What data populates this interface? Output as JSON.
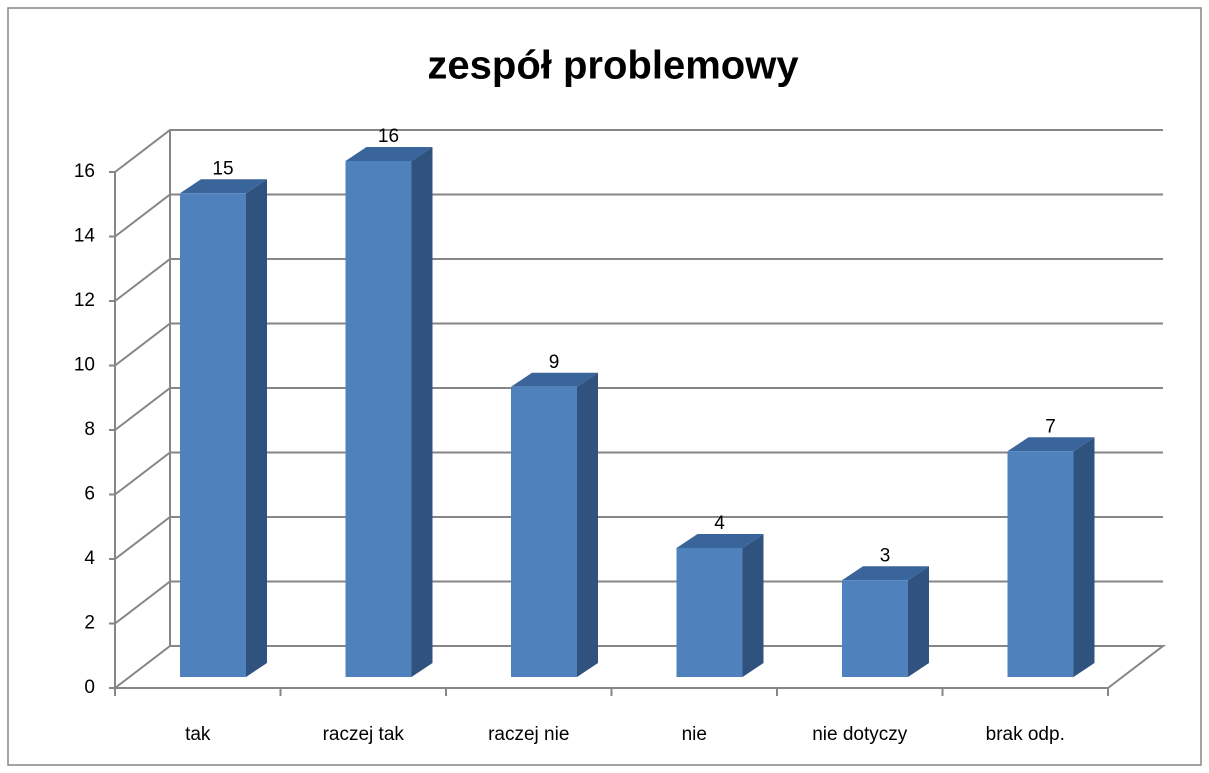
{
  "chart_data": {
    "type": "bar",
    "title": "zespół problemowy",
    "categories": [
      "tak",
      "raczej tak",
      "raczej nie",
      "nie",
      "nie dotyczy",
      "brak odp."
    ],
    "values": [
      15,
      16,
      9,
      4,
      3,
      7
    ],
    "color": "#4f81bd",
    "ylim": [
      0,
      16
    ],
    "yticks": [
      0,
      2,
      4,
      6,
      8,
      10,
      12,
      14,
      16
    ],
    "grid": true
  }
}
